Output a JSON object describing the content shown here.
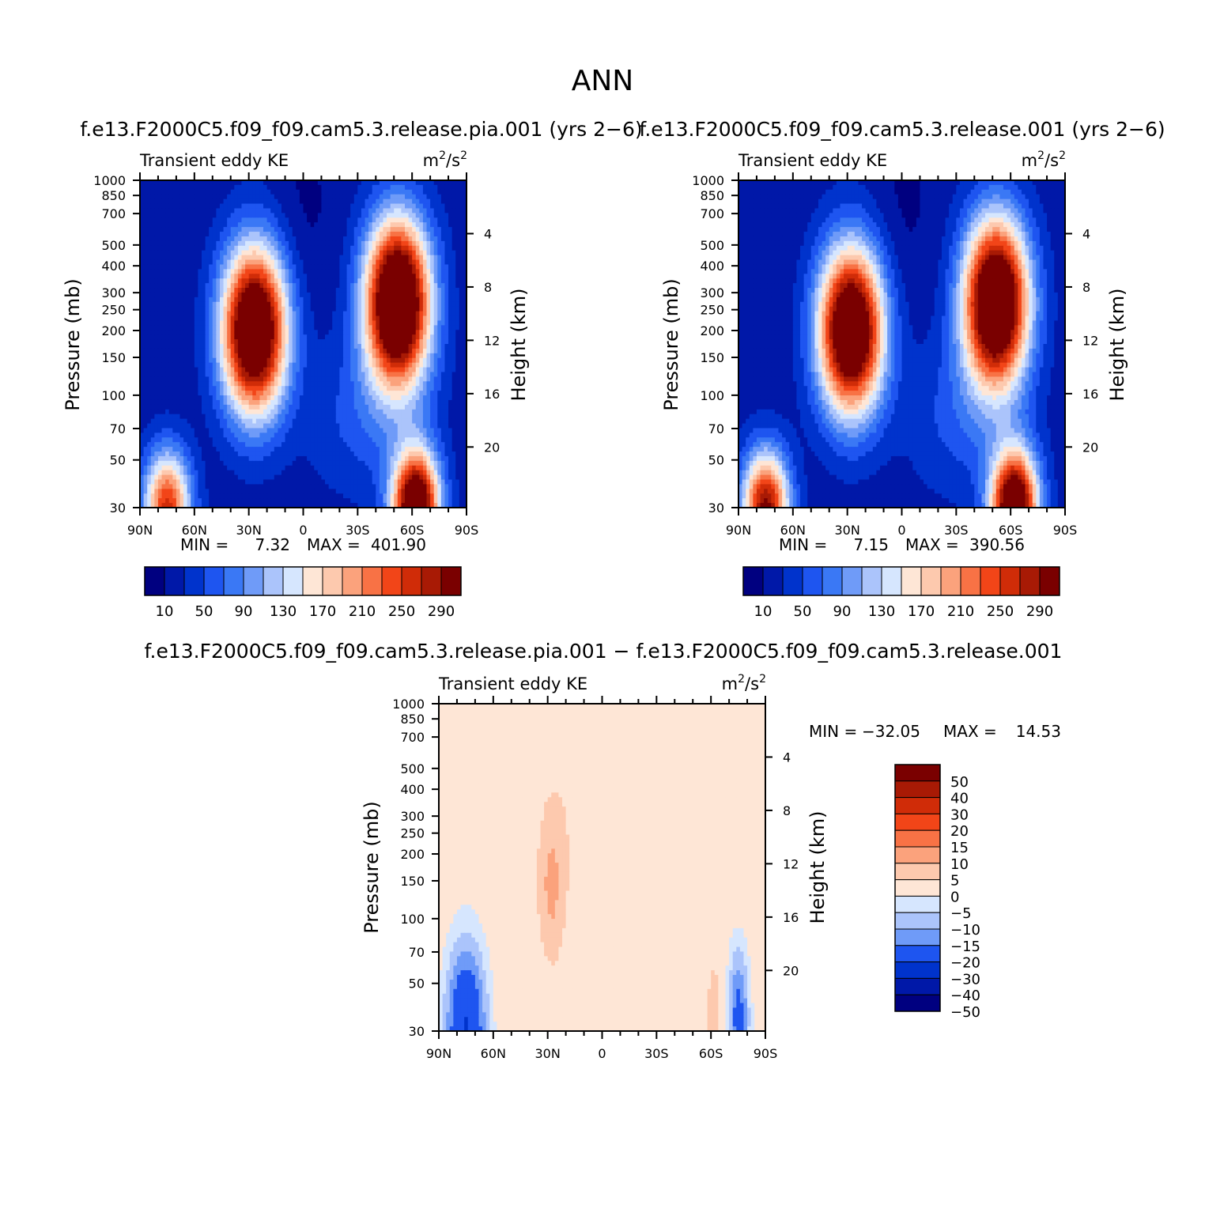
{
  "figure": {
    "title": "ANN"
  },
  "colors": {
    "abs_palette": [
      "#000080",
      "#0018A8",
      "#0033CC",
      "#1E55F0",
      "#3A78F5",
      "#6F9BF8",
      "#ABC4FB",
      "#D6E6FE",
      "#FEE6D6",
      "#FDC9AE",
      "#FBA27C",
      "#F87245",
      "#F24518",
      "#D02C08",
      "#A81A05",
      "#7A0000"
    ],
    "diff_palette": [
      "#000080",
      "#0018A8",
      "#0033CC",
      "#1E55F0",
      "#6F9BF8",
      "#ABC4FB",
      "#D6E6FE",
      "#FEE6D6",
      "#FDC9AE",
      "#FBA27C",
      "#F87245",
      "#F24518",
      "#D02C08",
      "#A81A05",
      "#7A0000"
    ]
  },
  "chart_data": [
    {
      "type": "contour",
      "title": "f.e13.F2000C5.f09_f09.cam5.3.release.pia.001  (yrs 2−6)",
      "left_string": "Transient eddy KE",
      "units_base": "m",
      "units_exp1": "2",
      "units_sep": "/s",
      "units_exp2": "2",
      "ylabel": "Pressure (mb)",
      "y2label": "Height (km)",
      "x_ticks": [
        "90N",
        "60N",
        "30N",
        "0",
        "30S",
        "60S",
        "90S"
      ],
      "y_ticks": [
        30,
        50,
        70,
        100,
        150,
        200,
        250,
        300,
        400,
        500,
        700,
        850,
        1000
      ],
      "y_ticks_labels": [
        "30",
        "50",
        "70",
        "100",
        "150",
        "200",
        "250",
        "300",
        "400",
        "500",
        "700",
        "850",
        "1000"
      ],
      "height_ticks": [
        20,
        16,
        12,
        8,
        4
      ],
      "height_ticks_labels": [
        "20",
        "16",
        "12",
        "8",
        "4"
      ],
      "min_label": "MIN = ",
      "min_value": "7.32",
      "max_label": "MAX = ",
      "max_value": "401.90",
      "colorbar_levels": [
        "10",
        "50",
        "90",
        "130",
        "170",
        "210",
        "250",
        "290"
      ],
      "contour_levels": [
        10,
        30,
        50,
        70,
        90,
        110,
        130,
        150,
        170,
        190,
        210,
        230,
        250,
        270,
        290
      ],
      "features": [
        {
          "lat": 27,
          "p": 200,
          "peak": 380,
          "type": "jet"
        },
        {
          "lat": -52,
          "p": 270,
          "peak": 400,
          "type": "jet"
        },
        {
          "lat": -62,
          "p": 30,
          "peak": 360,
          "type": "strat"
        },
        {
          "lat": 75,
          "p": 30,
          "peak": 240,
          "type": "strat"
        }
      ]
    },
    {
      "type": "contour",
      "title": "f.e13.F2000C5.f09_f09.cam5.3.release.001  (yrs 2−6)",
      "left_string": "Transient eddy KE",
      "units_base": "m",
      "units_exp1": "2",
      "units_sep": "/s",
      "units_exp2": "2",
      "ylabel": "Pressure (mb)",
      "y2label": "Height (km)",
      "x_ticks": [
        "90N",
        "60N",
        "30N",
        "0",
        "30S",
        "60S",
        "90S"
      ],
      "y_ticks": [
        30,
        50,
        70,
        100,
        150,
        200,
        250,
        300,
        400,
        500,
        700,
        850,
        1000
      ],
      "y_ticks_labels": [
        "30",
        "50",
        "70",
        "100",
        "150",
        "200",
        "250",
        "300",
        "400",
        "500",
        "700",
        "850",
        "1000"
      ],
      "height_ticks": [
        20,
        16,
        12,
        8,
        4
      ],
      "height_ticks_labels": [
        "20",
        "16",
        "12",
        "8",
        "4"
      ],
      "min_label": "MIN = ",
      "min_value": "7.15",
      "max_label": "MAX = ",
      "max_value": "390.56",
      "colorbar_levels": [
        "10",
        "50",
        "90",
        "130",
        "170",
        "210",
        "250",
        "290"
      ],
      "contour_levels": [
        10,
        30,
        50,
        70,
        90,
        110,
        130,
        150,
        170,
        190,
        210,
        230,
        250,
        270,
        290
      ],
      "features": [
        {
          "lat": 28,
          "p": 200,
          "peak": 375,
          "type": "jet"
        },
        {
          "lat": -52,
          "p": 270,
          "peak": 390,
          "type": "jet"
        },
        {
          "lat": -62,
          "p": 30,
          "peak": 360,
          "type": "strat"
        },
        {
          "lat": 75,
          "p": 30,
          "peak": 280,
          "type": "strat"
        }
      ]
    },
    {
      "type": "contour",
      "title": "f.e13.F2000C5.f09_f09.cam5.3.release.pia.001 − f.e13.F2000C5.f09_f09.cam5.3.release.001",
      "left_string": "Transient eddy KE",
      "units_base": "m",
      "units_exp1": "2",
      "units_sep": "/s",
      "units_exp2": "2",
      "ylabel": "Pressure (mb)",
      "y2label": "Height (km)",
      "x_ticks": [
        "90N",
        "60N",
        "30N",
        "0",
        "30S",
        "60S",
        "90S"
      ],
      "y_ticks": [
        30,
        50,
        70,
        100,
        150,
        200,
        250,
        300,
        400,
        500,
        700,
        850,
        1000
      ],
      "y_ticks_labels": [
        "30",
        "50",
        "70",
        "100",
        "150",
        "200",
        "250",
        "300",
        "400",
        "500",
        "700",
        "850",
        "1000"
      ],
      "height_ticks": [
        20,
        16,
        12,
        8,
        4
      ],
      "height_ticks_labels": [
        "20",
        "16",
        "12",
        "8",
        "4"
      ],
      "min_label": "MIN = ",
      "min_value": "−32.05",
      "max_label": "MAX = ",
      "max_value": "14.53",
      "colorbar_levels": [
        "50",
        "40",
        "30",
        "20",
        "15",
        "10",
        "5",
        "0",
        "−5",
        "−10",
        "−15",
        "−20",
        "−30",
        "−40",
        "−50"
      ],
      "contour_levels": [
        -50,
        -40,
        -30,
        -20,
        -15,
        -10,
        -5,
        0,
        5,
        10,
        15,
        20,
        30,
        40,
        50
      ]
    }
  ]
}
